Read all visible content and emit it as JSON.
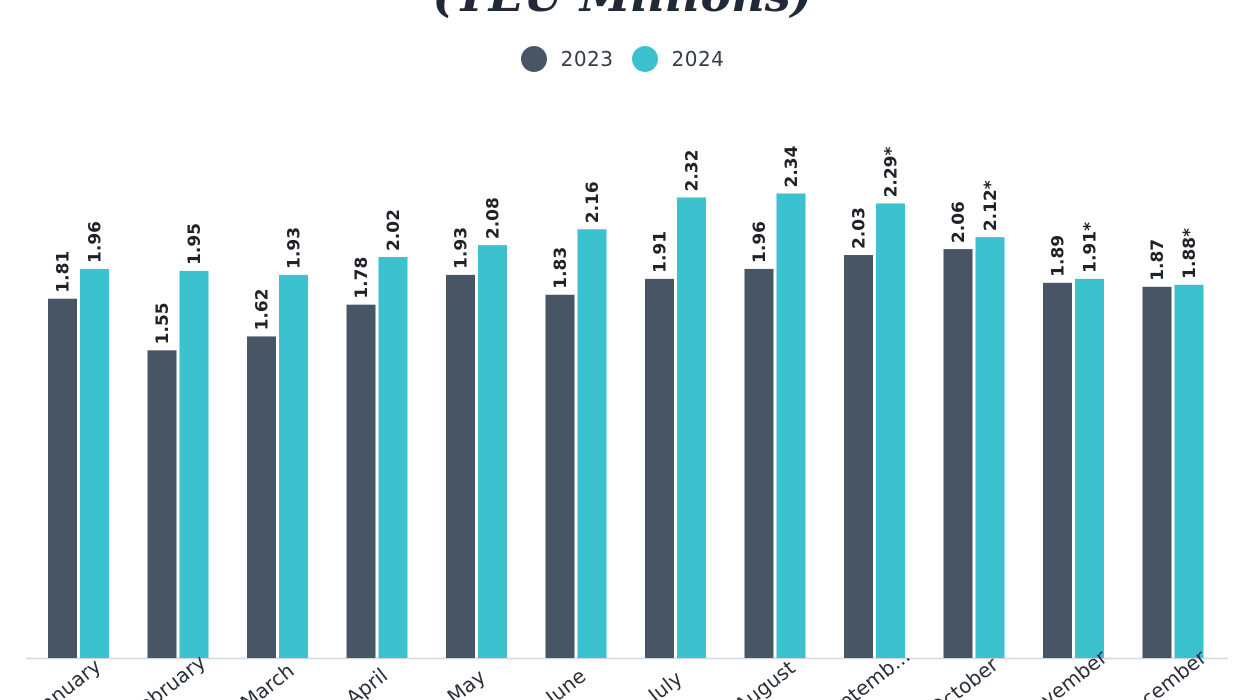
{
  "chart_data": {
    "type": "bar",
    "title": "(TEU Millions)",
    "categories": [
      "January",
      "February",
      "March",
      "April",
      "May",
      "June",
      "July",
      "August",
      "Septemb...",
      "October",
      "November",
      "December"
    ],
    "series": [
      {
        "name": "2023",
        "color": "#475565",
        "values": [
          1.81,
          1.55,
          1.62,
          1.78,
          1.93,
          1.83,
          1.91,
          1.96,
          2.03,
          2.06,
          1.89,
          1.87
        ],
        "labels": [
          "1.81",
          "1.55",
          "1.62",
          "1.78",
          "1.93",
          "1.83",
          "1.91",
          "1.96",
          "2.03",
          "2.06",
          "1.89",
          "1.87"
        ]
      },
      {
        "name": "2024",
        "color": "#3cc1cf",
        "values": [
          1.96,
          1.95,
          1.93,
          2.02,
          2.08,
          2.16,
          2.32,
          2.34,
          2.29,
          2.12,
          1.91,
          1.88
        ],
        "labels": [
          "1.96",
          "1.95",
          "1.93",
          "2.02",
          "2.08",
          "2.16",
          "2.32",
          "2.34",
          "2.29*",
          "2.12*",
          "1.91*",
          "1.88*"
        ]
      }
    ],
    "ylim": [
      0,
      2.5
    ],
    "grid": false,
    "legend": "top-center"
  }
}
